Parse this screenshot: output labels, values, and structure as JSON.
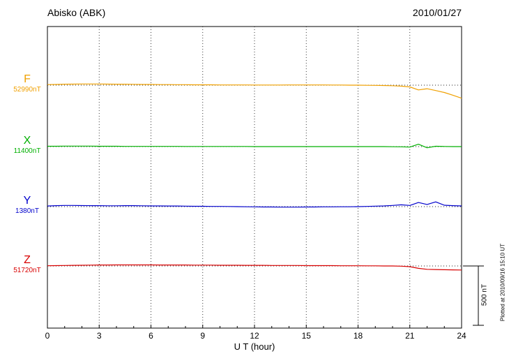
{
  "header": {
    "station": "Abisko (ABK)",
    "date": "2010/01/27"
  },
  "axis": {
    "xlabel": "U T (hour)",
    "ticks": [
      0,
      3,
      6,
      9,
      12,
      15,
      18,
      21,
      24
    ],
    "xmin": 0,
    "xmax": 24
  },
  "scalebar": {
    "label": "500 nT",
    "nT": 500
  },
  "footer_note": "Plotted at 2010/09/16 15:10 UT",
  "chart_data": {
    "type": "line",
    "title": "Abisko (ABK) magnetogram 2010/01/27",
    "xlabel": "U T (hour)",
    "x_min": 0,
    "x_max": 24,
    "x_start": 0,
    "x_step": 0.5,
    "units": "nT",
    "grid": "dotted vertical every 3 hours, dotted horizontal baseline per trace",
    "legend_position": "left margin",
    "series": [
      {
        "name": "F",
        "base_label": "52990nT",
        "color": "#f0a000",
        "values": [
          5,
          6,
          8,
          9,
          10,
          10,
          10,
          9,
          8,
          8,
          7,
          6,
          6,
          5,
          5,
          4,
          4,
          3,
          3,
          3,
          2,
          2,
          2,
          2,
          1,
          1,
          1,
          1,
          2,
          2,
          2,
          2,
          2,
          1,
          1,
          0,
          0,
          -1,
          -2,
          -3,
          -5,
          -8,
          -15,
          -40,
          -30,
          -45,
          -62,
          -85,
          -110
        ]
      },
      {
        "name": "X",
        "base_label": "11400nT",
        "color": "#00b000",
        "values": [
          3,
          3,
          4,
          4,
          4,
          4,
          3,
          3,
          3,
          2,
          2,
          2,
          2,
          2,
          2,
          2,
          1,
          1,
          1,
          1,
          1,
          1,
          1,
          1,
          0,
          0,
          0,
          0,
          0,
          0,
          0,
          0,
          0,
          0,
          0,
          0,
          0,
          0,
          0,
          0,
          -1,
          -2,
          -4,
          20,
          -10,
          3,
          1,
          0,
          0
        ]
      },
      {
        "name": "Y",
        "base_label": "1380nT",
        "color": "#0000cc",
        "values": [
          5,
          8,
          10,
          10,
          9,
          8,
          8,
          7,
          7,
          8,
          8,
          7,
          6,
          6,
          5,
          5,
          4,
          3,
          3,
          2,
          2,
          1,
          0,
          -1,
          -2,
          -3,
          -3,
          -4,
          -4,
          -4,
          -3,
          -3,
          -2,
          -2,
          -1,
          -1,
          0,
          2,
          4,
          6,
          10,
          15,
          10,
          35,
          18,
          40,
          12,
          8,
          6
        ]
      },
      {
        "name": "Z",
        "base_label": "51720nT",
        "color": "#d80000",
        "values": [
          2,
          3,
          4,
          5,
          6,
          7,
          8,
          8,
          9,
          9,
          9,
          9,
          9,
          8,
          8,
          8,
          8,
          7,
          7,
          7,
          6,
          6,
          6,
          5,
          5,
          5,
          4,
          4,
          4,
          4,
          3,
          3,
          3,
          3,
          2,
          2,
          2,
          1,
          1,
          0,
          0,
          -2,
          -6,
          -20,
          -28,
          -30,
          -32,
          -33,
          -34
        ]
      }
    ]
  }
}
